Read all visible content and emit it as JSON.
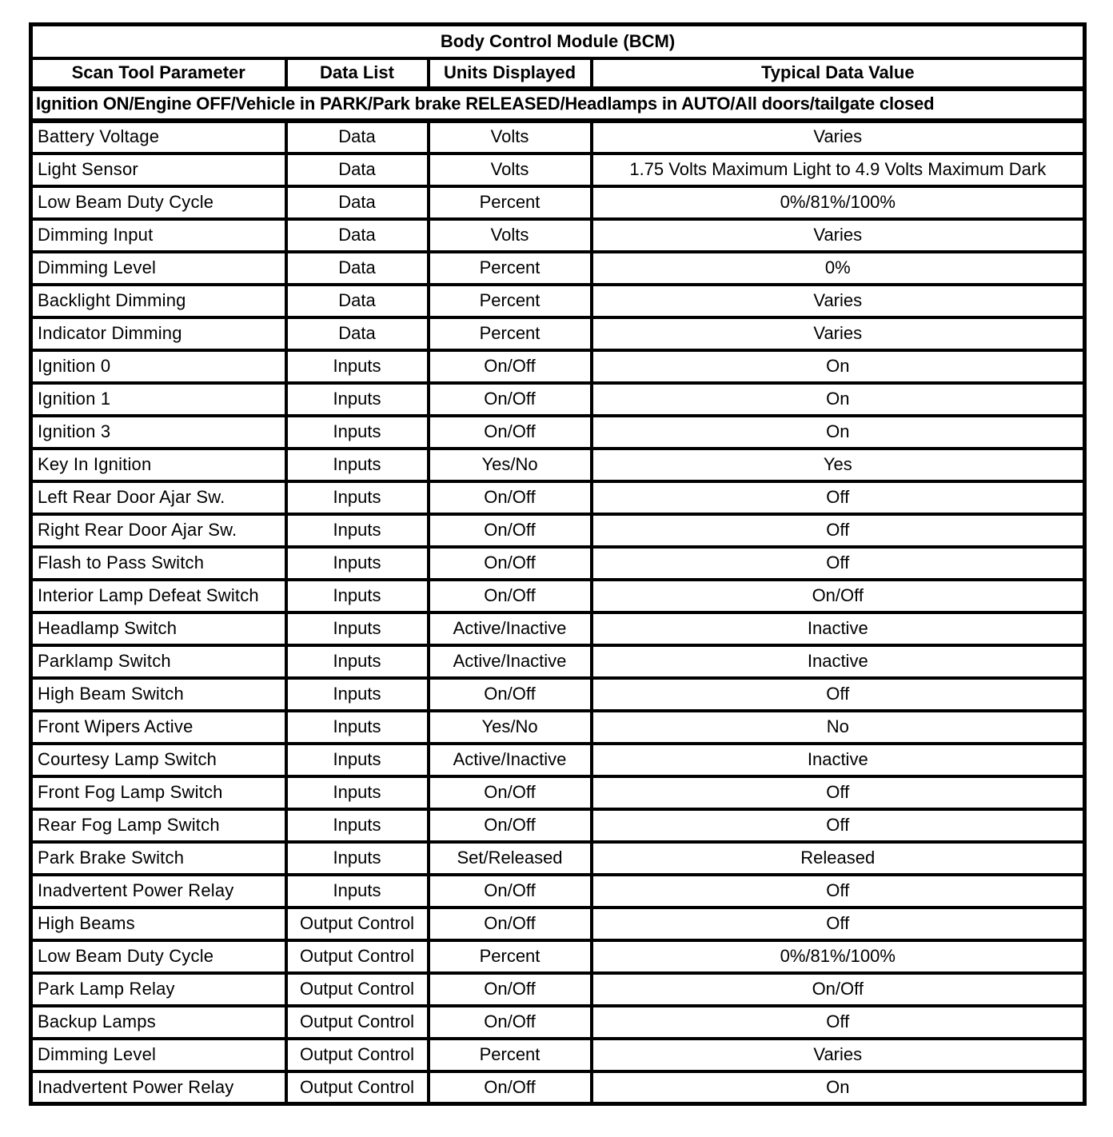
{
  "table": {
    "title": "Body Control Module (BCM)",
    "columns": [
      "Scan Tool Parameter",
      "Data List",
      "Units Displayed",
      "Typical Data Value"
    ],
    "condition": "Ignition ON/Engine OFF/Vehicle in PARK/Park brake RELEASED/Headlamps in AUTO/All doors/tailgate closed",
    "rows": [
      [
        "Battery Voltage",
        "Data",
        "Volts",
        "Varies"
      ],
      [
        "Light Sensor",
        "Data",
        "Volts",
        "1.75 Volts Maximum Light to 4.9 Volts Maximum Dark"
      ],
      [
        "Low Beam Duty Cycle",
        "Data",
        "Percent",
        "0%/81%/100%"
      ],
      [
        "Dimming Input",
        "Data",
        "Volts",
        "Varies"
      ],
      [
        "Dimming Level",
        "Data",
        "Percent",
        "0%"
      ],
      [
        "Backlight Dimming",
        "Data",
        "Percent",
        "Varies"
      ],
      [
        "Indicator Dimming",
        "Data",
        "Percent",
        "Varies"
      ],
      [
        "Ignition 0",
        "Inputs",
        "On/Off",
        "On"
      ],
      [
        "Ignition 1",
        "Inputs",
        "On/Off",
        "On"
      ],
      [
        "Ignition 3",
        "Inputs",
        "On/Off",
        "On"
      ],
      [
        "Key In Ignition",
        "Inputs",
        "Yes/No",
        "Yes"
      ],
      [
        "Left Rear Door Ajar Sw.",
        "Inputs",
        "On/Off",
        "Off"
      ],
      [
        "Right Rear Door Ajar Sw.",
        "Inputs",
        "On/Off",
        "Off"
      ],
      [
        "Flash to Pass Switch",
        "Inputs",
        "On/Off",
        "Off"
      ],
      [
        "Interior Lamp Defeat Switch",
        "Inputs",
        "On/Off",
        "On/Off"
      ],
      [
        "Headlamp Switch",
        "Inputs",
        "Active/Inactive",
        "Inactive"
      ],
      [
        "Parklamp Switch",
        "Inputs",
        "Active/Inactive",
        "Inactive"
      ],
      [
        "High Beam Switch",
        "Inputs",
        "On/Off",
        "Off"
      ],
      [
        "Front Wipers Active",
        "Inputs",
        "Yes/No",
        "No"
      ],
      [
        "Courtesy Lamp Switch",
        "Inputs",
        "Active/Inactive",
        "Inactive"
      ],
      [
        "Front Fog Lamp Switch",
        "Inputs",
        "On/Off",
        "Off"
      ],
      [
        "Rear Fog Lamp Switch",
        "Inputs",
        "On/Off",
        "Off"
      ],
      [
        "Park Brake Switch",
        "Inputs",
        "Set/Released",
        "Released"
      ],
      [
        "Inadvertent Power Relay",
        "Inputs",
        "On/Off",
        "Off"
      ],
      [
        "High Beams",
        "Output Control",
        "On/Off",
        "Off"
      ],
      [
        "Low Beam Duty Cycle",
        "Output Control",
        "Percent",
        "0%/81%/100%"
      ],
      [
        "Park Lamp Relay",
        "Output Control",
        "On/Off",
        "On/Off"
      ],
      [
        "Backup Lamps",
        "Output Control",
        "On/Off",
        "Off"
      ],
      [
        "Dimming Level",
        "Output Control",
        "Percent",
        "Varies"
      ],
      [
        "Inadvertent Power Relay",
        "Output Control",
        "On/Off",
        "On"
      ]
    ]
  }
}
